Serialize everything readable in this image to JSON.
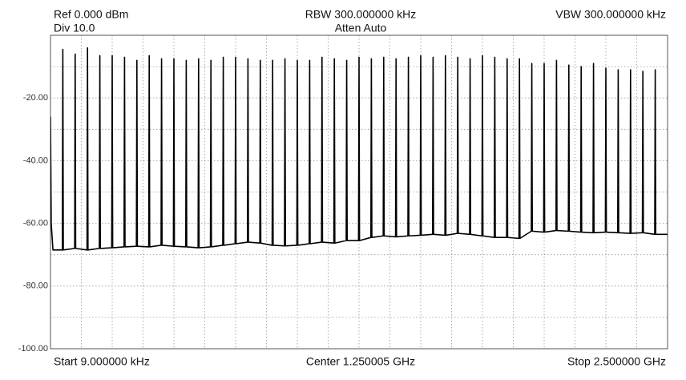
{
  "chart_data": {
    "type": "line",
    "ref_label": "Ref 0.000 dBm",
    "div_label": "Div 10.0",
    "rbw_label": "RBW 300.000000 kHz",
    "atten_label": "Atten Auto",
    "vbw_label": "VBW 300.000000 kHz",
    "start_label": "Start 9.000000 kHz",
    "center_label": "Center 1.250005 GHz",
    "stop_label": "Stop 2.500000 GHz",
    "color": "#000000",
    "grid": true,
    "xlim": [
      9e-06,
      2.5
    ],
    "ylim": [
      -100,
      0
    ],
    "yticks": [
      {
        "value": -20,
        "label": "-20.00"
      },
      {
        "value": -40,
        "label": "-40.00"
      },
      {
        "value": -60,
        "label": "-60.00"
      },
      {
        "value": -80,
        "label": "-80.00"
      },
      {
        "value": -100,
        "label": "-100.00"
      }
    ],
    "ygrid": [
      -10,
      -20,
      -30,
      -40,
      -50,
      -60,
      -70,
      -80,
      -90
    ],
    "xgrid": [
      0.125,
      0.25,
      0.375,
      0.5,
      0.625,
      0.75,
      0.875,
      1,
      1.125,
      1.25,
      1.375,
      1.5,
      1.625,
      1.75,
      1.875,
      2,
      2.125,
      2.25,
      2.375
    ],
    "x": [
      9e-06,
      0.003,
      0.01,
      0.048,
      0.05,
      0.052,
      0.098,
      0.1,
      0.102,
      0.148,
      0.15,
      0.152,
      0.198,
      0.2,
      0.202,
      0.248,
      0.25,
      0.252,
      0.298,
      0.3,
      0.302,
      0.348,
      0.35,
      0.352,
      0.398,
      0.4,
      0.402,
      0.448,
      0.45,
      0.452,
      0.498,
      0.5,
      0.502,
      0.548,
      0.55,
      0.552,
      0.598,
      0.6,
      0.602,
      0.648,
      0.65,
      0.652,
      0.698,
      0.7,
      0.702,
      0.748,
      0.75,
      0.752,
      0.798,
      0.8,
      0.802,
      0.848,
      0.85,
      0.852,
      0.898,
      0.9,
      0.902,
      0.948,
      0.95,
      0.952,
      0.998,
      1,
      1.002,
      1.048,
      1.05,
      1.052,
      1.098,
      1.1,
      1.102,
      1.148,
      1.15,
      1.152,
      1.198,
      1.2,
      1.202,
      1.248,
      1.25,
      1.252,
      1.298,
      1.3,
      1.302,
      1.348,
      1.35,
      1.352,
      1.398,
      1.4,
      1.402,
      1.448,
      1.45,
      1.452,
      1.498,
      1.5,
      1.502,
      1.548,
      1.55,
      1.552,
      1.598,
      1.6,
      1.602,
      1.648,
      1.65,
      1.652,
      1.698,
      1.7,
      1.702,
      1.748,
      1.75,
      1.752,
      1.798,
      1.8,
      1.802,
      1.848,
      1.85,
      1.852,
      1.898,
      1.9,
      1.902,
      1.948,
      1.95,
      1.952,
      1.998,
      2,
      2.002,
      2.048,
      2.05,
      2.052,
      2.098,
      2.1,
      2.102,
      2.148,
      2.15,
      2.152,
      2.198,
      2.2,
      2.202,
      2.248,
      2.25,
      2.252,
      2.298,
      2.3,
      2.302,
      2.348,
      2.35,
      2.352,
      2.398,
      2.4,
      2.402,
      2.448,
      2.45,
      2.452,
      2.5
    ],
    "values": [
      -26,
      -60,
      -68.5,
      -68.5,
      -4.5,
      -68.5,
      -68,
      -6,
      -68,
      -68.5,
      -4,
      -68.5,
      -68,
      -6.5,
      -68,
      -67.8,
      -6.5,
      -67.8,
      -67.5,
      -7,
      -67.5,
      -67.3,
      -8,
      -67.3,
      -67.5,
      -6.5,
      -67.5,
      -67,
      -7.5,
      -67,
      -67.3,
      -7.5,
      -67.3,
      -67.5,
      -8,
      -67.5,
      -67.8,
      -7.5,
      -67.8,
      -67.5,
      -8,
      -67.5,
      -67,
      -7,
      -67,
      -66.5,
      -7,
      -66.5,
      -66,
      -7.5,
      -66,
      -66.3,
      -8,
      -66.3,
      -67,
      -8,
      -67,
      -67.2,
      -7.5,
      -67.2,
      -67,
      -8,
      -67,
      -66.5,
      -8,
      -66.5,
      -66,
      -7,
      -66,
      -66.3,
      -7.5,
      -66.3,
      -65.5,
      -8,
      -65.5,
      -65.5,
      -7,
      -65.5,
      -64.5,
      -7.5,
      -64.5,
      -64,
      -7,
      -64,
      -64.3,
      -7.5,
      -64.3,
      -64,
      -7,
      -64,
      -63.8,
      -6.5,
      -63.8,
      -63.5,
      -7,
      -63.5,
      -63.8,
      -6.5,
      -63.8,
      -63.2,
      -7,
      -63.2,
      -63.5,
      -7.5,
      -63.5,
      -64,
      -6.5,
      -64,
      -64.5,
      -7,
      -64.5,
      -64.5,
      -7.5,
      -64.5,
      -64.8,
      -7.5,
      -64.8,
      -62.5,
      -9,
      -62.5,
      -62.8,
      -9,
      -62.8,
      -62.3,
      -8,
      -62.3,
      -62.5,
      -9.5,
      -62.5,
      -62.8,
      -10,
      -62.8,
      -63,
      -9,
      -63,
      -62.8,
      -10.5,
      -62.8,
      -63,
      -11,
      -63,
      -63.2,
      -11,
      -63.2,
      -63,
      -11.5,
      -63,
      -63.5,
      -11,
      -63.5,
      -63.5
    ]
  }
}
